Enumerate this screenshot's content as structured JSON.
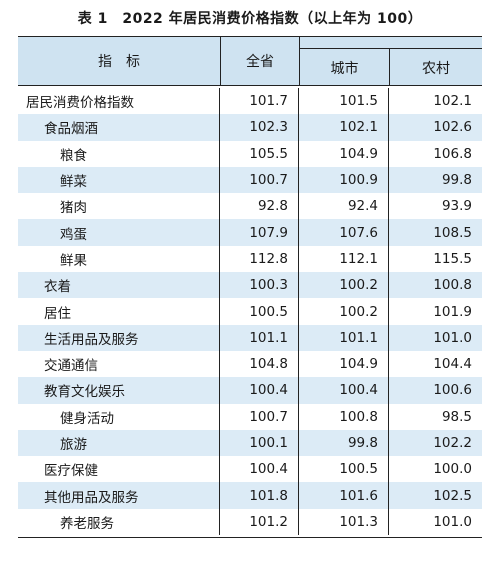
{
  "title": "表 1　2022 年居民消费价格指数（以上年为 100）",
  "headers": {
    "indicator": "指　标",
    "province": "全省",
    "urban": "城市",
    "rural": "农村"
  },
  "rows": [
    {
      "name": "居民消费价格指数",
      "level": 0,
      "province": "101.7",
      "urban": "101.5",
      "rural": "102.1"
    },
    {
      "name": "食品烟酒",
      "level": 1,
      "province": "102.3",
      "urban": "102.1",
      "rural": "102.6"
    },
    {
      "name": "粮食",
      "level": 2,
      "province": "105.5",
      "urban": "104.9",
      "rural": "106.8"
    },
    {
      "name": "鲜菜",
      "level": 2,
      "province": "100.7",
      "urban": "100.9",
      "rural": "99.8"
    },
    {
      "name": "猪肉",
      "level": 2,
      "province": "92.8",
      "urban": "92.4",
      "rural": "93.9"
    },
    {
      "name": "鸡蛋",
      "level": 2,
      "province": "107.9",
      "urban": "107.6",
      "rural": "108.5"
    },
    {
      "name": "鲜果",
      "level": 2,
      "province": "112.8",
      "urban": "112.1",
      "rural": "115.5"
    },
    {
      "name": "衣着",
      "level": 1,
      "province": "100.3",
      "urban": "100.2",
      "rural": "100.8"
    },
    {
      "name": "居住",
      "level": 1,
      "province": "100.5",
      "urban": "100.2",
      "rural": "101.9"
    },
    {
      "name": "生活用品及服务",
      "level": 1,
      "province": "101.1",
      "urban": "101.1",
      "rural": "101.0"
    },
    {
      "name": "交通通信",
      "level": 1,
      "province": "104.8",
      "urban": "104.9",
      "rural": "104.4"
    },
    {
      "name": "教育文化娱乐",
      "level": 1,
      "province": "100.4",
      "urban": "100.4",
      "rural": "100.6"
    },
    {
      "name": "健身活动",
      "level": 2,
      "province": "100.7",
      "urban": "100.8",
      "rural": "98.5"
    },
    {
      "name": "旅游",
      "level": 2,
      "province": "100.1",
      "urban": "99.8",
      "rural": "102.2"
    },
    {
      "name": "医疗保健",
      "level": 1,
      "province": "100.4",
      "urban": "100.5",
      "rural": "100.0"
    },
    {
      "name": "其他用品及服务",
      "level": 1,
      "province": "101.8",
      "urban": "101.6",
      "rural": "102.5"
    },
    {
      "name": "养老服务",
      "level": 2,
      "province": "101.2",
      "urban": "101.3",
      "rural": "101.0"
    }
  ],
  "colors": {
    "header_bg": "#cfe3f1",
    "shaded_row_bg": "#dcebf6"
  }
}
